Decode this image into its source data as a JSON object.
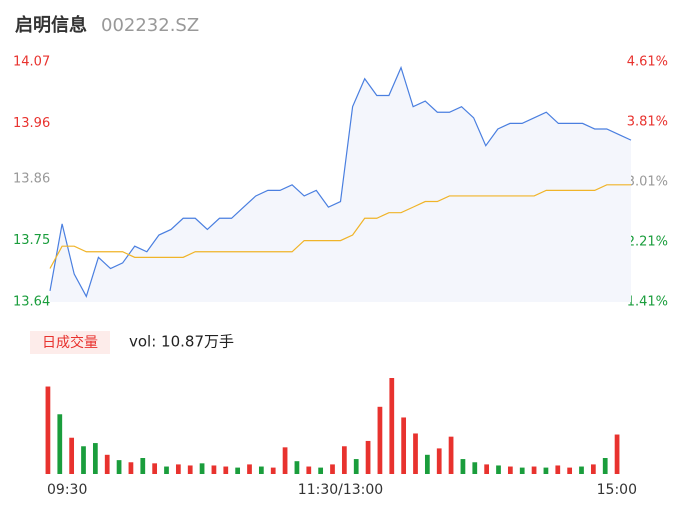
{
  "header": {
    "title": "启明信息",
    "code": "002232.SZ"
  },
  "chart_data": [
    {
      "type": "line",
      "categories": [
        "09:30",
        null,
        null,
        null,
        null,
        null,
        null,
        null,
        null,
        null,
        null,
        null,
        null,
        null,
        null,
        null,
        null,
        null,
        null,
        null,
        null,
        null,
        null,
        null,
        "11:30/13:00",
        null,
        null,
        null,
        null,
        null,
        null,
        null,
        null,
        null,
        null,
        null,
        null,
        null,
        null,
        null,
        null,
        null,
        null,
        null,
        null,
        null,
        null,
        null,
        "15:00"
      ],
      "series": [
        {
          "color": "#4a7fe0",
          "fill": "#f4f6fc",
          "values": [
            13.66,
            13.78,
            13.69,
            13.65,
            13.72,
            13.7,
            13.71,
            13.74,
            13.73,
            13.76,
            13.77,
            13.79,
            13.79,
            13.77,
            13.79,
            13.79,
            13.81,
            13.83,
            13.84,
            13.84,
            13.85,
            13.83,
            13.84,
            13.81,
            13.82,
            13.99,
            14.04,
            14.01,
            14.01,
            14.06,
            13.99,
            14.0,
            13.98,
            13.98,
            13.99,
            13.97,
            13.92,
            13.95,
            13.96,
            13.96,
            13.97,
            13.98,
            13.96,
            13.96,
            13.96,
            13.95,
            13.95,
            13.94,
            13.93
          ]
        },
        {
          "color": "#f0b429",
          "values": [
            13.7,
            13.74,
            13.74,
            13.73,
            13.73,
            13.73,
            13.73,
            13.72,
            13.72,
            13.72,
            13.72,
            13.72,
            13.73,
            13.73,
            13.73,
            13.73,
            13.73,
            13.73,
            13.73,
            13.73,
            13.73,
            13.75,
            13.75,
            13.75,
            13.75,
            13.76,
            13.79,
            13.79,
            13.8,
            13.8,
            13.81,
            13.82,
            13.82,
            13.83,
            13.83,
            13.83,
            13.83,
            13.83,
            13.83,
            13.83,
            13.83,
            13.84,
            13.84,
            13.84,
            13.84,
            13.84,
            13.85,
            13.85,
            13.85
          ]
        }
      ],
      "ylim": [
        13.64,
        14.07
      ],
      "yticks": [
        14.07,
        13.96,
        13.86,
        13.75,
        13.64
      ],
      "y2lim": [
        1.41,
        4.61
      ],
      "y2ticks": [
        {
          "value": 4.61,
          "label": "4.61%"
        },
        {
          "value": 3.81,
          "label": "3.81%"
        },
        {
          "value": 3.01,
          "label": "3.01%"
        },
        {
          "value": 2.21,
          "label": "2.21%"
        },
        {
          "value": 1.41,
          "label": "1.41%"
        }
      ],
      "ytick_colors": [
        "#e8322e",
        "#e8322e",
        "#999999",
        "#1a9d3c",
        "#1a9d3c"
      ]
    },
    {
      "type": "bar",
      "legend": "日成交量",
      "label": "vol: 10.87万手",
      "ylim": [
        0,
        9000
      ],
      "values": [
        8200,
        5600,
        3400,
        2600,
        2900,
        1800,
        1300,
        1100,
        1500,
        1000,
        700,
        900,
        800,
        1000,
        800,
        700,
        600,
        900,
        700,
        600,
        2500,
        1200,
        700,
        600,
        900,
        2600,
        1400,
        3100,
        6300,
        9000,
        5300,
        3800,
        1800,
        2400,
        3500,
        1400,
        1100,
        900,
        800,
        700,
        600,
        700,
        600,
        800,
        600,
        700,
        900,
        1500,
        3700
      ],
      "colors": [
        "#e8322e",
        "#1a9d3c",
        "#e8322e",
        "#1a9d3c",
        "#1a9d3c",
        "#e8322e",
        "#1a9d3c",
        "#e8322e",
        "#1a9d3c",
        "#e8322e",
        "#1a9d3c",
        "#e8322e",
        "#e8322e",
        "#1a9d3c",
        "#e8322e",
        "#e8322e",
        "#1a9d3c",
        "#e8322e",
        "#1a9d3c",
        "#e8322e",
        "#e8322e",
        "#1a9d3c",
        "#e8322e",
        "#1a9d3c",
        "#e8322e",
        "#e8322e",
        "#1a9d3c",
        "#e8322e",
        "#e8322e",
        "#e8322e",
        "#e8322e",
        "#e8322e",
        "#1a9d3c",
        "#e8322e",
        "#e8322e",
        "#1a9d3c",
        "#1a9d3c",
        "#e8322e",
        "#1a9d3c",
        "#e8322e",
        "#1a9d3c",
        "#e8322e",
        "#1a9d3c",
        "#e8322e",
        "#e8322e",
        "#1a9d3c",
        "#e8322e",
        "#1a9d3c",
        "#e8322e"
      ]
    }
  ]
}
